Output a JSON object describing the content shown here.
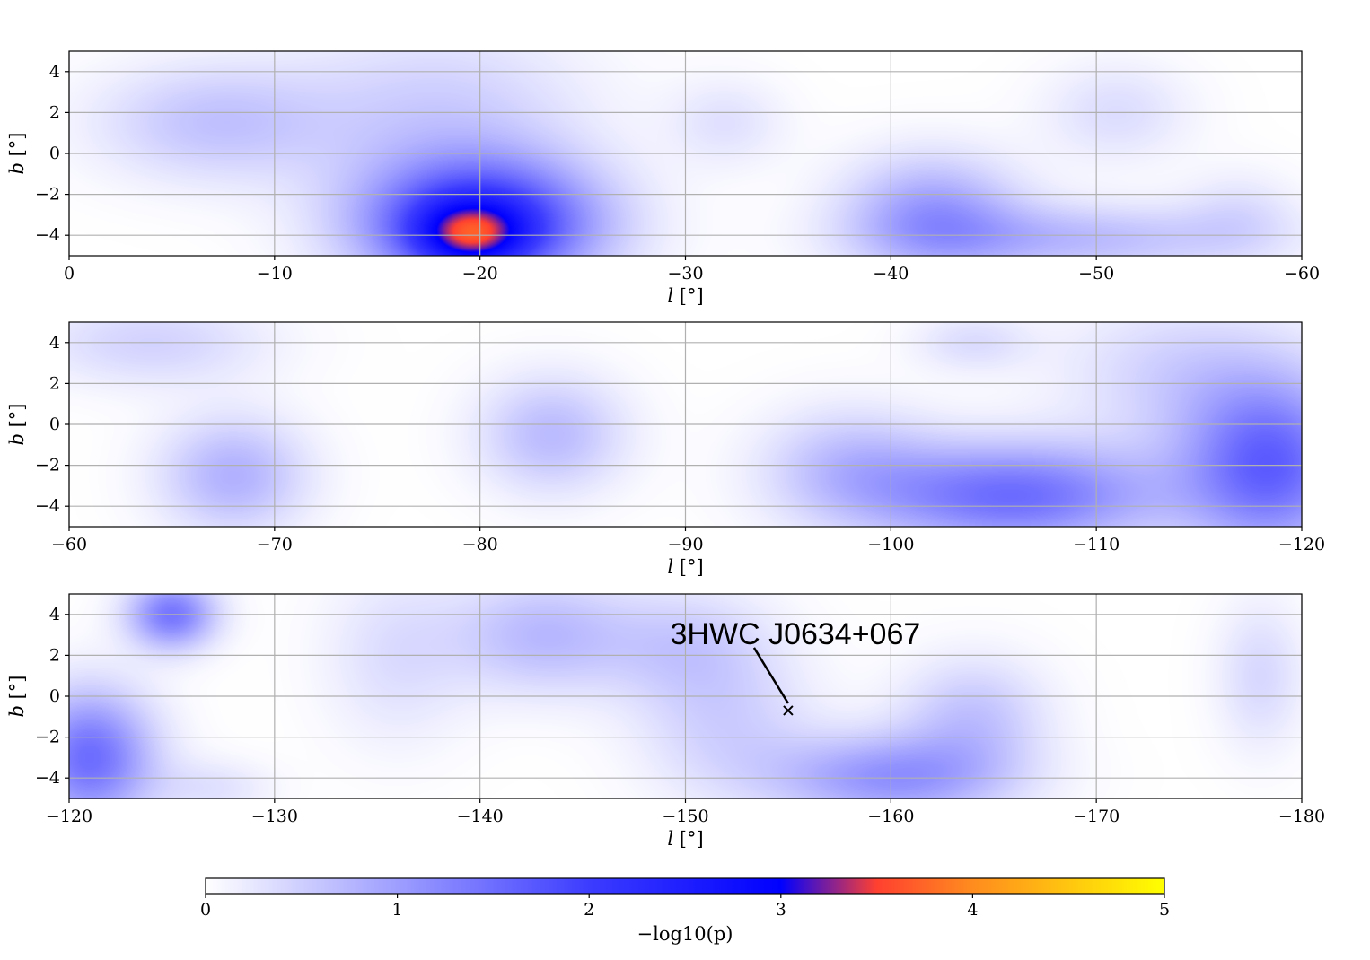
{
  "chart_data": [
    {
      "type": "heatmap",
      "xlabel_var": "l",
      "xlabel_unit": "[°]",
      "ylabel_var": "b",
      "ylabel_unit": "[°]",
      "xlim": [
        0,
        -60
      ],
      "ylim": [
        -5,
        5
      ],
      "xticks": [
        0,
        -10,
        -20,
        -30,
        -40,
        -50,
        -60
      ],
      "xtick_labels": [
        "0",
        "−10",
        "−20",
        "−30",
        "−40",
        "−50",
        "−60"
      ],
      "yticks": [
        4,
        2,
        0,
        -2,
        -4
      ],
      "ytick_labels": [
        "4",
        "2",
        "0",
        "−2",
        "−4"
      ],
      "grid": true,
      "blobs": [
        {
          "l": -7,
          "b": 1.5,
          "sl": 4,
          "sb": 2,
          "v": 0.6
        },
        {
          "l": -18,
          "b": 2,
          "sl": 5,
          "sb": 3,
          "v": 0.5
        },
        {
          "l": -20,
          "b": -3.5,
          "sl": 4,
          "sb": 2.2,
          "v": 2.4
        },
        {
          "l": -19.5,
          "b": -4,
          "sl": 1.8,
          "sb": 1.1,
          "v": 1.3
        },
        {
          "l": -32,
          "b": 1.5,
          "sl": 2,
          "sb": 1.5,
          "v": 0.3
        },
        {
          "l": -42,
          "b": -3,
          "sl": 3,
          "sb": 2,
          "v": 1.0
        },
        {
          "l": -49,
          "b": -4.2,
          "sl": 6,
          "sb": 1.2,
          "v": 0.7
        },
        {
          "l": -51,
          "b": 2,
          "sl": 2.5,
          "sb": 1.7,
          "v": 0.35
        },
        {
          "l": -57,
          "b": -3,
          "sl": 2,
          "sb": 1.5,
          "v": 0.3
        }
      ]
    },
    {
      "type": "heatmap",
      "xlabel_var": "l",
      "xlabel_unit": "[°]",
      "ylabel_var": "b",
      "ylabel_unit": "[°]",
      "xlim": [
        -60,
        -120
      ],
      "ylim": [
        -5,
        5
      ],
      "xticks": [
        -60,
        -70,
        -80,
        -90,
        -100,
        -110,
        -120
      ],
      "xtick_labels": [
        "−60",
        "−70",
        "−80",
        "−90",
        "−100",
        "−110",
        "−120"
      ],
      "yticks": [
        4,
        2,
        0,
        -2,
        -4
      ],
      "ytick_labels": [
        "4",
        "2",
        "0",
        "−2",
        "−4"
      ],
      "grid": true,
      "blobs": [
        {
          "l": -64,
          "b": 4,
          "sl": 4,
          "sb": 1.5,
          "v": 0.45
        },
        {
          "l": -68,
          "b": -2.5,
          "sl": 2.5,
          "sb": 2,
          "v": 0.8
        },
        {
          "l": -83.5,
          "b": -0.5,
          "sl": 2.5,
          "sb": 2,
          "v": 0.7
        },
        {
          "l": -98,
          "b": -2,
          "sl": 3,
          "sb": 2,
          "v": 0.6
        },
        {
          "l": -106,
          "b": -3.5,
          "sl": 5,
          "sb": 1.8,
          "v": 1.5
        },
        {
          "l": -104,
          "b": 4,
          "sl": 2,
          "sb": 1,
          "v": 0.35
        },
        {
          "l": -118.5,
          "b": -2,
          "sl": 3,
          "sb": 3,
          "v": 1.6
        },
        {
          "l": -114,
          "b": 2.5,
          "sl": 4,
          "sb": 2.5,
          "v": 0.45
        }
      ]
    },
    {
      "type": "heatmap",
      "xlabel_var": "l",
      "xlabel_unit": "[°]",
      "ylabel_var": "b",
      "ylabel_unit": "[°]",
      "xlim": [
        -120,
        -180
      ],
      "ylim": [
        -5,
        5
      ],
      "xticks": [
        -120,
        -130,
        -140,
        -150,
        -160,
        -170,
        -180
      ],
      "xtick_labels": [
        "−120",
        "−130",
        "−140",
        "−150",
        "−160",
        "−170",
        "−180"
      ],
      "yticks": [
        4,
        2,
        0,
        -2,
        -4
      ],
      "ytick_labels": [
        "4",
        "2",
        "0",
        "−2",
        "−4"
      ],
      "grid": true,
      "blobs": [
        {
          "l": -121,
          "b": -3,
          "sl": 2.2,
          "sb": 2.3,
          "v": 1.5
        },
        {
          "l": -125,
          "b": 4,
          "sl": 1.5,
          "sb": 1.2,
          "v": 1.4
        },
        {
          "l": -127,
          "b": -4.5,
          "sl": 2,
          "sb": 1,
          "v": 0.3
        },
        {
          "l": -136,
          "b": 2,
          "sl": 2.5,
          "sb": 3,
          "v": 0.35
        },
        {
          "l": -143,
          "b": 3,
          "sl": 3,
          "sb": 2,
          "v": 0.7
        },
        {
          "l": -150,
          "b": 2.5,
          "sl": 3,
          "sb": 2,
          "v": 0.5
        },
        {
          "l": -152,
          "b": -1.5,
          "sl": 3,
          "sb": 2.5,
          "v": 0.45
        },
        {
          "l": -160,
          "b": -4,
          "sl": 4,
          "sb": 1.5,
          "v": 1.1
        },
        {
          "l": -164,
          "b": -1,
          "sl": 2.5,
          "sb": 2,
          "v": 0.6
        },
        {
          "l": -178,
          "b": 1,
          "sl": 1.5,
          "sb": 2.5,
          "v": 0.4
        }
      ],
      "annotations": [
        {
          "text": "3HWC J0634+067",
          "l": -155,
          "b": -0.7
        }
      ]
    }
  ],
  "colorbar": {
    "range": [
      0,
      5
    ],
    "ticks": [
      0,
      1,
      2,
      3,
      4,
      5
    ],
    "tick_labels": [
      "0",
      "1",
      "2",
      "3",
      "4",
      "5"
    ],
    "label": "−log10(p)",
    "colors": [
      "#ffffff",
      "#0000ff",
      "#ff4030",
      "#ffff00"
    ]
  }
}
